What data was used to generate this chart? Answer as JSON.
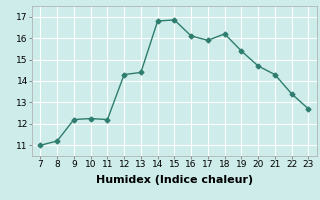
{
  "x": [
    7,
    8,
    9,
    10,
    11,
    12,
    13,
    14,
    15,
    16,
    17,
    18,
    19,
    20,
    21,
    22,
    23
  ],
  "y": [
    11.0,
    11.2,
    12.2,
    12.25,
    12.2,
    14.3,
    14.4,
    16.8,
    16.85,
    16.1,
    15.9,
    16.2,
    15.4,
    14.7,
    14.3,
    13.4,
    12.7
  ],
  "line_color": "#2e7d6e",
  "marker": "D",
  "marker_size": 2.5,
  "background_color": "#cdecea",
  "grid_color": "#ffffff",
  "xlabel": "Humidex (Indice chaleur)",
  "xlabel_fontsize": 8,
  "xlim": [
    6.5,
    23.5
  ],
  "ylim": [
    10.5,
    17.5
  ],
  "xticks": [
    7,
    8,
    9,
    10,
    11,
    12,
    13,
    14,
    15,
    16,
    17,
    18,
    19,
    20,
    21,
    22,
    23
  ],
  "yticks": [
    11,
    12,
    13,
    14,
    15,
    16,
    17
  ],
  "tick_fontsize": 6.5
}
